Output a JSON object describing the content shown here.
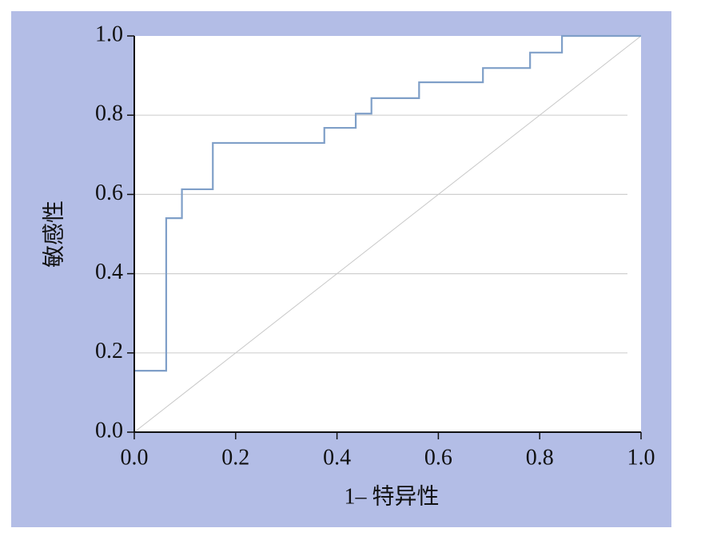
{
  "chart_data": {
    "type": "line",
    "x_label": "1– 特异性",
    "y_label": "敏感性",
    "series": [
      {
        "color": "#7f9fc8",
        "x": [
          0,
          0.063,
          0.063,
          0.094,
          0.094,
          0.155,
          0.155,
          0.375,
          0.375,
          0.437,
          0.437,
          0.468,
          0.468,
          0.562,
          0.562,
          0.688,
          0.688,
          0.781,
          0.781,
          0.844,
          0.844,
          1
        ],
        "values": [
          0.155,
          0.155,
          0.54,
          0.54,
          0.613,
          0.613,
          0.73,
          0.73,
          0.768,
          0.768,
          0.804,
          0.804,
          0.843,
          0.843,
          0.883,
          0.883,
          0.919,
          0.919,
          0.958,
          0.958,
          1,
          1
        ]
      },
      {
        "color": "#c8c8c8",
        "x": [
          0,
          1
        ],
        "values": [
          0,
          1
        ]
      }
    ],
    "xlim": [
      0,
      1
    ],
    "ylim": [
      0,
      1
    ],
    "xticks": [
      {
        "value": 0,
        "label": "0.0"
      },
      0.2,
      0.4,
      0.6,
      0.8,
      {
        "value": 1,
        "label": "1.0"
      }
    ],
    "yticks": [
      {
        "value": 0,
        "label": "0.0"
      },
      0.2,
      0.4,
      0.6,
      0.8,
      {
        "value": 1,
        "label": "1.0"
      }
    ],
    "grid": true
  }
}
